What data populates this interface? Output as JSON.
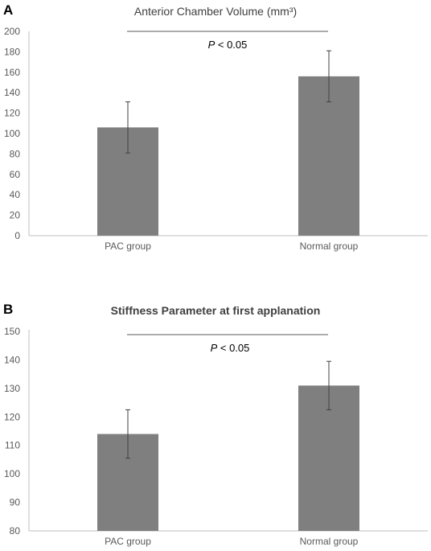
{
  "chart_data": [
    {
      "panel_label": "A",
      "type": "bar",
      "title": "Anterior Chamber Volume (mm³)",
      "categories": [
        "PAC group",
        "Normal group"
      ],
      "values": [
        106,
        156
      ],
      "error": [
        25,
        25
      ],
      "ylim": [
        0,
        200
      ],
      "yticks": [
        "0",
        "20",
        "40",
        "60",
        "80",
        "100",
        "120",
        "140",
        "160",
        "180",
        "200"
      ],
      "significance": {
        "p_italic": "P",
        "rest": " < 0.05"
      },
      "bar_color": "#7f7f7f",
      "grid": false
    },
    {
      "panel_label": "B",
      "type": "bar",
      "title": "Stiffness Parameter at first applanation",
      "categories": [
        "PAC group",
        "Normal group"
      ],
      "values": [
        114,
        131
      ],
      "error": [
        8.5,
        8.5
      ],
      "ylim": [
        80,
        150
      ],
      "yticks": [
        "80",
        "90",
        "100",
        "110",
        "120",
        "130",
        "140",
        "150"
      ],
      "significance": {
        "p_italic": "P",
        "rest": " < 0.05"
      },
      "bar_color": "#7f7f7f",
      "grid": false
    }
  ]
}
